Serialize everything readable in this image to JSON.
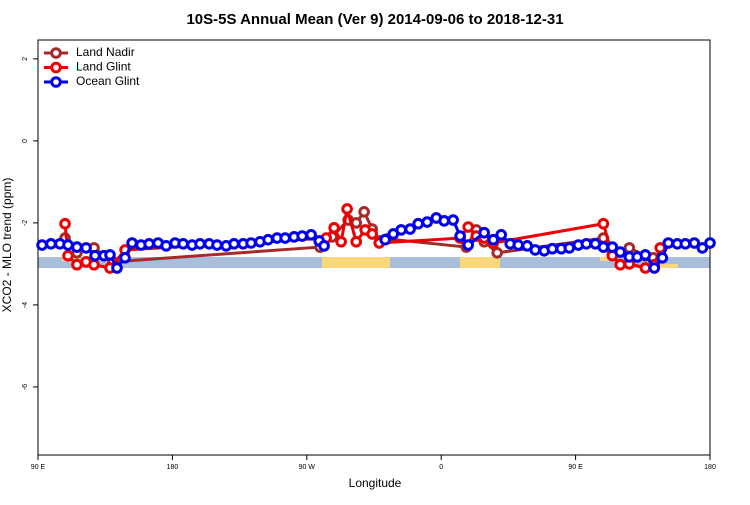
{
  "chart_data": {
    "type": "line",
    "title": "10S-5S Annual Mean (Ver 9)   2014-09-06 to 2018-12-31",
    "x_label": "Longitude",
    "y_label": "XCO2 - MLO trend (ppm)",
    "xlim": [
      90,
      540
    ],
    "ylim": [
      -7.66,
      2.46
    ],
    "xticks": [
      {
        "value": 90,
        "label": "90 E"
      },
      180,
      {
        "value": 270,
        "label": "90 W"
      },
      {
        "value": 360,
        "label": "0"
      },
      {
        "value": 450,
        "label": "90 E"
      },
      {
        "value": 540,
        "label": "180"
      }
    ],
    "yticks": [
      -6,
      -4,
      -2,
      0,
      2
    ],
    "legend": "top-left",
    "series": [
      {
        "name": "Land Nadir",
        "color": "#a52a2a",
        "x": [
          108.1,
          116.1,
          127.5,
          140.2,
          278.9,
          287,
          297.7,
          303.1,
          308.4,
          313.8,
          319.2,
          323.8,
          376.8,
          383.5,
          388.8,
          397.5,
          468.6,
          474.6,
          486,
          496.7,
          502
        ],
        "values": [
          -2.37,
          -2.73,
          -2.61,
          -2.95,
          -2.59,
          -2.34,
          -1.93,
          -2.0,
          -1.73,
          -2.15,
          -2.44,
          -2.39,
          -2.59,
          -2.17,
          -2.46,
          -2.73,
          -2.37,
          -2.73,
          -2.61,
          -2.8,
          -2.85
        ]
      },
      {
        "name": "Land Glint",
        "color": "#ee0000",
        "x": [
          108.1,
          110.1,
          116.1,
          122.2,
          127.5,
          138.2,
          148.3,
          283,
          288.3,
          293,
          297,
          303.1,
          309.1,
          313.8,
          318.5,
          372.7,
          378.1,
          383.5,
          388.8,
          394.9,
          468.6,
          474.6,
          479.9,
          486,
          496.7,
          502.7,
          506.7
        ],
        "values": [
          -2.02,
          -2.8,
          -3.02,
          -2.95,
          -3.02,
          -3.1,
          -2.66,
          -2.37,
          -2.12,
          -2.46,
          -1.66,
          -2.46,
          -2.17,
          -2.27,
          -2.49,
          -2.37,
          -2.1,
          -2.32,
          -2.37,
          -2.49,
          -2.02,
          -2.8,
          -3.02,
          -3.0,
          -3.1,
          -3.02,
          -2.61
        ]
      },
      {
        "name": "Ocean Glint",
        "color": "#0000ee",
        "x": [
          92.7,
          98.7,
          104.7,
          110.1,
          116.1,
          122.2,
          128.2,
          134.2,
          138.2,
          142.9,
          148.3,
          153,
          159,
          164.4,
          170.4,
          175.8,
          181.8,
          187.2,
          193.2,
          198.5,
          204.6,
          209.9,
          216,
          221.3,
          227.4,
          232.7,
          238.7,
          244.1,
          250.1,
          255.5,
          261.5,
          266.9,
          272.9,
          278.3,
          281.6,
          300,
          322.5,
          327.9,
          333.2,
          339.2,
          344.6,
          350.6,
          356.7,
          362,
          368,
          372.7,
          378.1,
          388.8,
          394.9,
          400.2,
          406.2,
          411.6,
          417.6,
          423,
          429,
          434.4,
          440.4,
          445.8,
          451.8,
          457.2,
          463.2,
          468.6,
          474.6,
          479.9,
          486,
          491.3,
          496.7,
          502.7,
          508.1,
          512.1,
          518.1,
          523.5,
          529.5,
          534.9,
          540
        ],
        "values": [
          -2.54,
          -2.51,
          -2.51,
          -2.54,
          -2.59,
          -2.61,
          -2.8,
          -2.8,
          -2.78,
          -3.1,
          -2.85,
          -2.49,
          -2.54,
          -2.51,
          -2.49,
          -2.56,
          -2.49,
          -2.51,
          -2.54,
          -2.51,
          -2.51,
          -2.54,
          -2.56,
          -2.51,
          -2.51,
          -2.49,
          -2.46,
          -2.41,
          -2.37,
          -2.37,
          -2.34,
          -2.32,
          -2.29,
          -2.44,
          -2.56,
          null,
          -2.41,
          -2.27,
          -2.17,
          -2.15,
          -2.02,
          -1.98,
          -1.88,
          -1.95,
          -1.93,
          -2.32,
          -2.54,
          -2.24,
          -2.41,
          -2.29,
          -2.51,
          -2.54,
          -2.56,
          -2.66,
          -2.68,
          -2.63,
          -2.63,
          -2.61,
          -2.54,
          -2.51,
          -2.51,
          -2.59,
          -2.59,
          -2.71,
          -2.83,
          -2.83,
          -2.78,
          -3.1,
          -2.85,
          -2.49,
          -2.51,
          -2.51,
          -2.49,
          -2.61,
          -2.49
        ]
      }
    ]
  }
}
